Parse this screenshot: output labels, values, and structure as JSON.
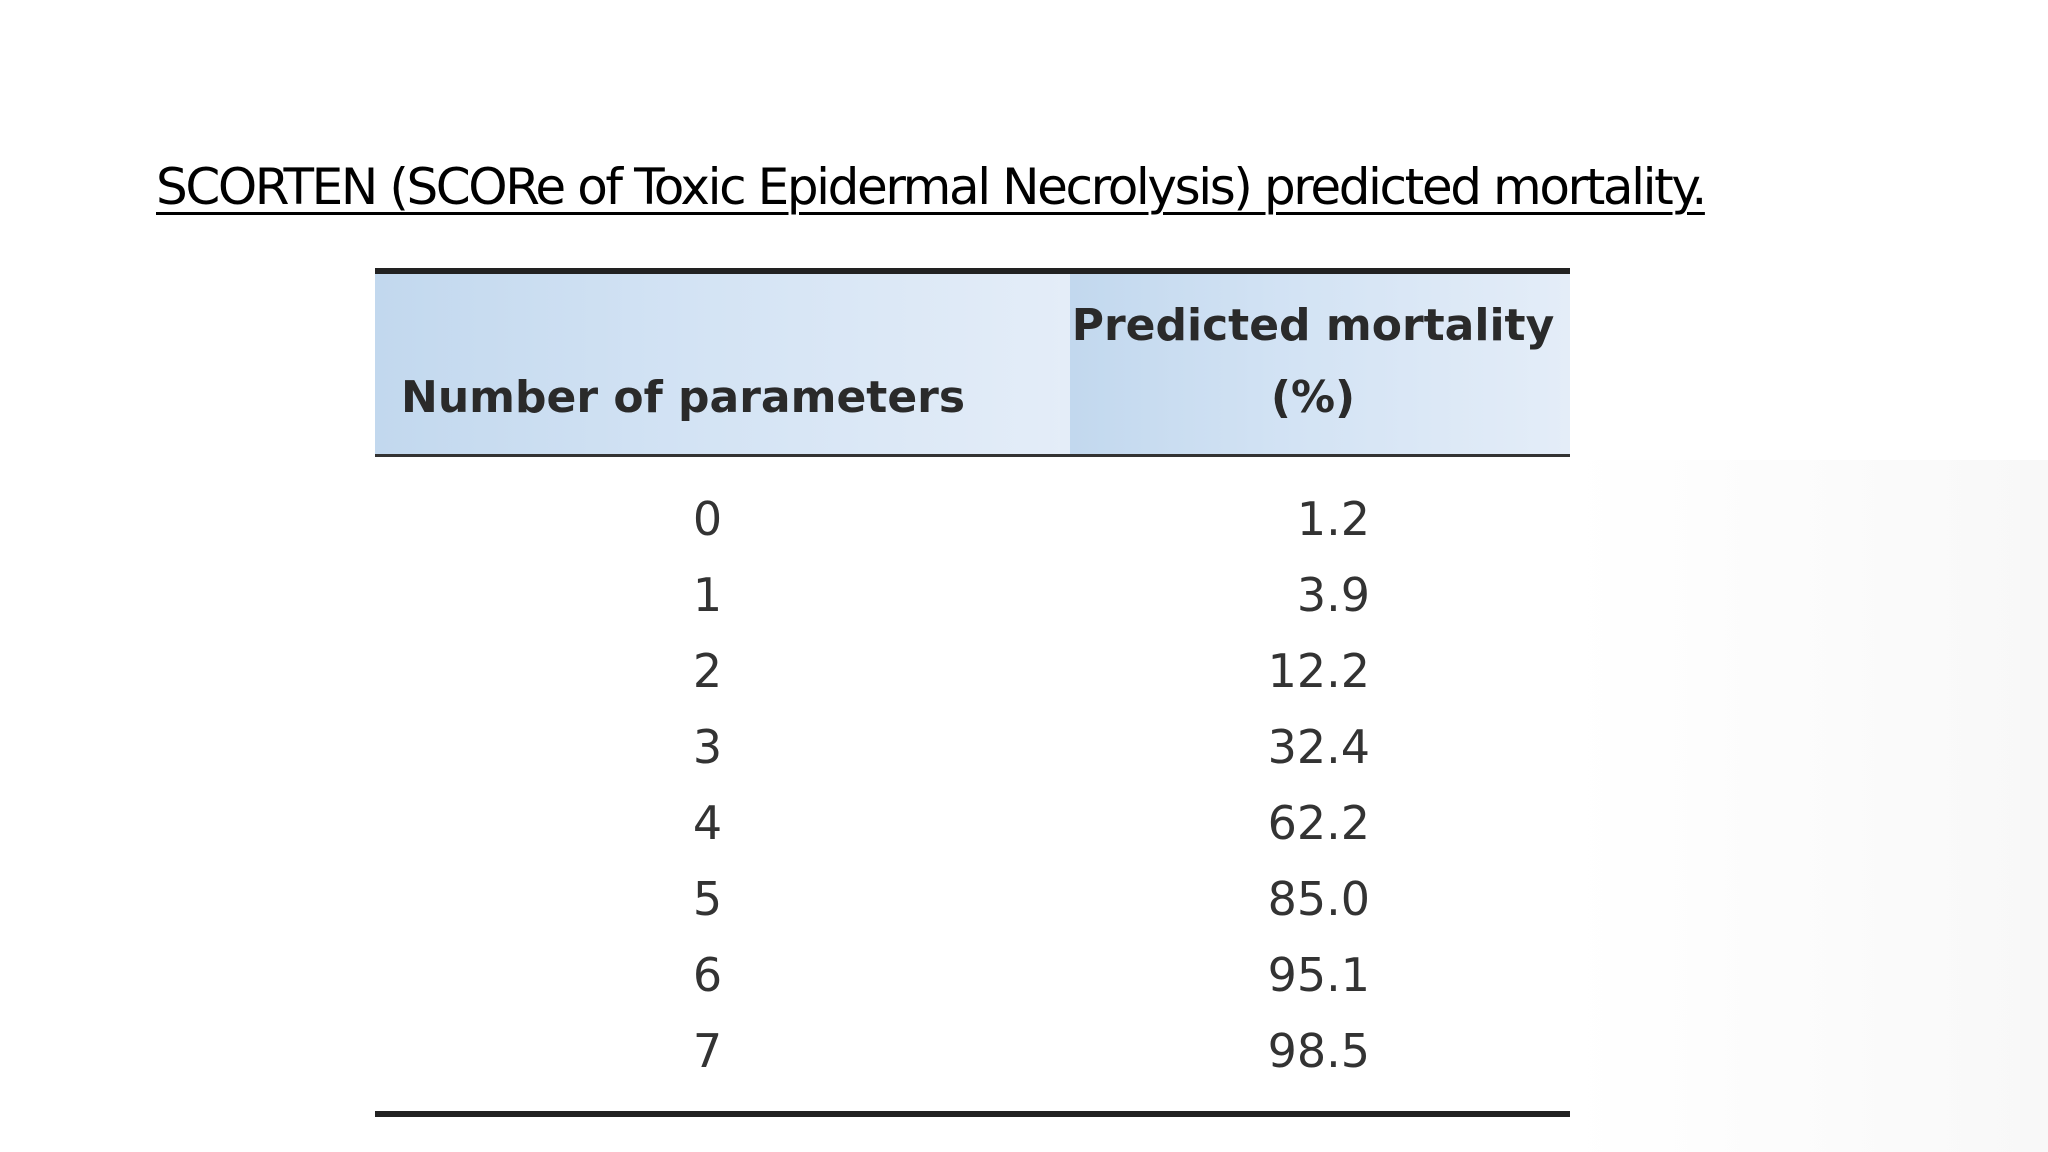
{
  "slide": {
    "title": "SCORTEN (SCORe of Toxic Epidermal Necrolysis) predicted mortality."
  },
  "table": {
    "headers": {
      "params": "Number of parameters",
      "mortality_line1": "Predicted mortality",
      "mortality_line2": "(%)"
    },
    "rows": [
      {
        "params": "0",
        "mortality": "1.2"
      },
      {
        "params": "1",
        "mortality": "3.9"
      },
      {
        "params": "2",
        "mortality": "12.2"
      },
      {
        "params": "3",
        "mortality": "32.4"
      },
      {
        "params": "4",
        "mortality": "62.2"
      },
      {
        "params": "5",
        "mortality": "85.0"
      },
      {
        "params": "6",
        "mortality": "95.1"
      },
      {
        "params": "7",
        "mortality": "98.5"
      }
    ]
  },
  "colors": {
    "header_bg_start": "#c2d8ee",
    "header_bg_end": "#e4edf8",
    "rule": "#222222",
    "text": "#333333"
  }
}
